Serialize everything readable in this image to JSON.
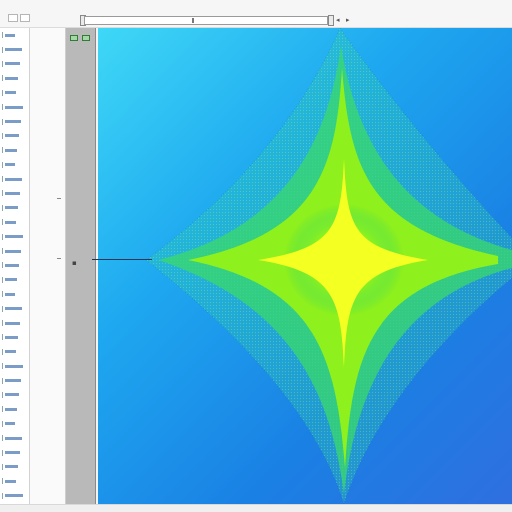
{
  "window": {
    "title": ""
  },
  "toolbar": {
    "range_value": "",
    "buttons": [
      "window-icon",
      "grid-icon"
    ]
  },
  "icons": {
    "zoom_left": "chevron-left-icon",
    "zoom_right": "chevron-right-icon",
    "layer_a": "layer-icon",
    "layer_b": "layer-icon",
    "anchor": "anchor-icon"
  },
  "list": {
    "item_count": 33
  },
  "plot": {
    "colormap": [
      "#3fd8f6",
      "#1ea8f0",
      "#28d86a",
      "#7cf020",
      "#e8ff10"
    ],
    "shape": "four-point star density field"
  }
}
